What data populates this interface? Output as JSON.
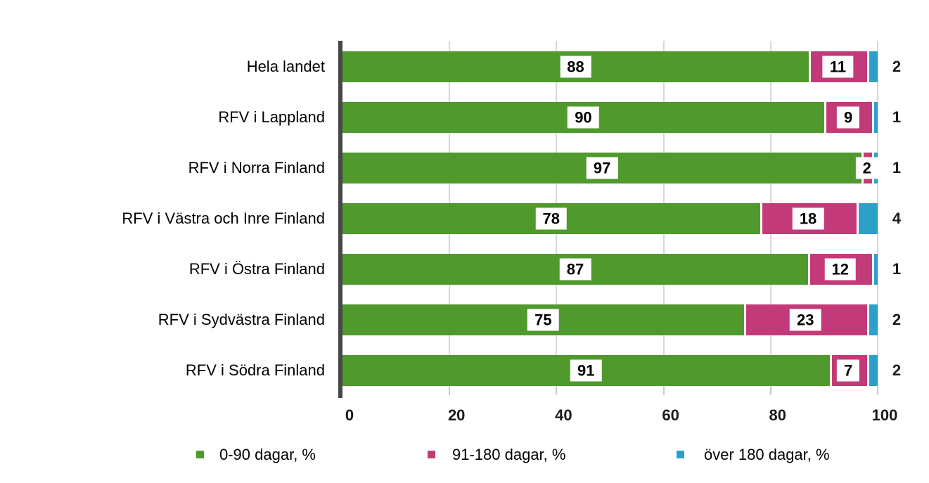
{
  "chart_data": {
    "type": "bar",
    "orientation": "horizontal",
    "stacked": true,
    "categories": [
      "Hela landet",
      "RFV i Lappland",
      "RFV i Norra Finland",
      "RFV i Västra och Inre Finland",
      "RFV i Östra Finland",
      "RFV i Sydvästra Finland",
      "RFV i Södra Finland"
    ],
    "series": [
      {
        "name": "0-90 dagar, %",
        "color": "#4f992d",
        "values": [
          88,
          90,
          97,
          78,
          87,
          75,
          91
        ]
      },
      {
        "name": "91-180 dagar, %",
        "color": "#c23b78",
        "values": [
          11,
          9,
          2,
          18,
          12,
          23,
          7
        ]
      },
      {
        "name": "över 180 dagar, %",
        "color": "#2ba1c9",
        "values": [
          2,
          1,
          1,
          4,
          1,
          2,
          2
        ]
      }
    ],
    "x_ticks": [
      0,
      20,
      40,
      60,
      80,
      100
    ],
    "xlim": [
      0,
      100
    ],
    "grid": true,
    "legend_position": "bottom",
    "value_label_style": "white boxes on green and pink segments; blue values printed right of bars"
  },
  "colors": {
    "gridline": "#d8d8d8",
    "axis": "#474747",
    "background": "#ffffff",
    "text": "#000000"
  }
}
